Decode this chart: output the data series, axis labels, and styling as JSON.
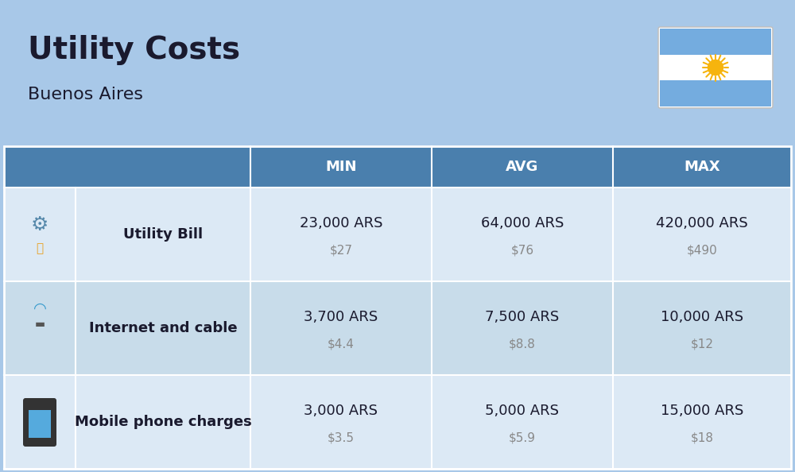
{
  "title": "Utility Costs",
  "subtitle": "Buenos Aires",
  "background_color": "#a8c8e8",
  "header_color": "#4a7fad",
  "header_text_color": "#ffffff",
  "col_headers": [
    "MIN",
    "AVG",
    "MAX"
  ],
  "rows": [
    {
      "label": "Utility Bill",
      "min_ars": "23,000 ARS",
      "min_usd": "$27",
      "avg_ars": "64,000 ARS",
      "avg_usd": "$76",
      "max_ars": "420,000 ARS",
      "max_usd": "$490"
    },
    {
      "label": "Internet and cable",
      "min_ars": "3,700 ARS",
      "min_usd": "$4.4",
      "avg_ars": "7,500 ARS",
      "avg_usd": "$8.8",
      "max_ars": "10,000 ARS",
      "max_usd": "$12"
    },
    {
      "label": "Mobile phone charges",
      "min_ars": "3,000 ARS",
      "min_usd": "$3.5",
      "avg_ars": "5,000 ARS",
      "avg_usd": "$5.9",
      "max_ars": "15,000 ARS",
      "max_usd": "$18"
    }
  ],
  "title_fontsize": 28,
  "subtitle_fontsize": 16,
  "header_fontsize": 13,
  "label_fontsize": 13,
  "value_fontsize": 13,
  "usd_fontsize": 11,
  "flag_stripe_color": "#74acdf",
  "sun_color": "#f6b40e",
  "row_bg_colors": [
    "#dce9f5",
    "#c8dcea",
    "#dce9f5"
  ],
  "divider_color": "#ffffff",
  "label_color": "#1a1a2e",
  "usd_color": "#888888"
}
